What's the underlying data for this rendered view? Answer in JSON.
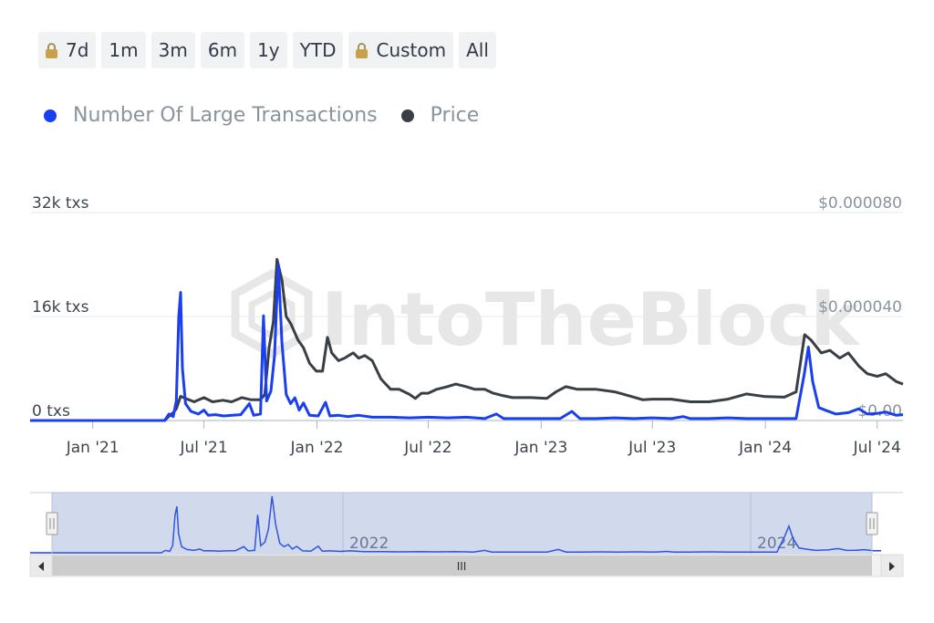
{
  "range_buttons": [
    {
      "label": "7d",
      "locked": true
    },
    {
      "label": "1m",
      "locked": false
    },
    {
      "label": "3m",
      "locked": false
    },
    {
      "label": "6m",
      "locked": false
    },
    {
      "label": "1y",
      "locked": false
    },
    {
      "label": "YTD",
      "locked": false
    },
    {
      "label": "Custom",
      "locked": true
    },
    {
      "label": "All",
      "locked": false
    }
  ],
  "legend": [
    {
      "label": "Number Of Large Transactions",
      "color": "#1a3ff0"
    },
    {
      "label": "Price",
      "color": "#3a3f46"
    }
  ],
  "watermark": "IntoTheBlock",
  "navigator": {
    "year_labels": [
      "2022",
      "2024"
    ],
    "scroll_grip": "III"
  },
  "chart_data": {
    "type": "line",
    "x_tick_labels": [
      "Jan '21",
      "Jul '21",
      "Jan '22",
      "Jul '22",
      "Jan '23",
      "Jul '23",
      "Jan '24",
      "Jul '24"
    ],
    "x_tick_dates": [
      "2021-01-01",
      "2021-07-01",
      "2022-01-01",
      "2022-07-01",
      "2023-01-01",
      "2023-07-01",
      "2024-01-01",
      "2024-07-01"
    ],
    "x_range": [
      "2020-09-21",
      "2024-08-12"
    ],
    "y_left_labels": [
      "0 txs",
      "16k txs",
      "32k txs"
    ],
    "y_left_range": [
      0,
      32000
    ],
    "y_right_labels": [
      "$0.00",
      "$0.000040",
      "$0.000080"
    ],
    "y_right_range": [
      0,
      8e-05
    ],
    "grid": true,
    "series": [
      {
        "name": "Number Of Large Transactions",
        "axis": "left",
        "color": "#1a3ff0",
        "points": [
          [
            "2020-09-21",
            0
          ],
          [
            "2021-04-28",
            0
          ],
          [
            "2021-05-05",
            1000
          ],
          [
            "2021-05-12",
            600
          ],
          [
            "2021-05-17",
            3000
          ],
          [
            "2021-05-21",
            16000
          ],
          [
            "2021-05-24",
            19700
          ],
          [
            "2021-05-27",
            8000
          ],
          [
            "2021-06-01",
            2600
          ],
          [
            "2021-06-10",
            1400
          ],
          [
            "2021-06-22",
            1000
          ],
          [
            "2021-07-01",
            1600
          ],
          [
            "2021-07-08",
            800
          ],
          [
            "2021-07-20",
            900
          ],
          [
            "2021-08-02",
            700
          ],
          [
            "2021-08-16",
            800
          ],
          [
            "2021-08-30",
            900
          ],
          [
            "2021-09-13",
            2600
          ],
          [
            "2021-09-20",
            800
          ],
          [
            "2021-10-01",
            1000
          ],
          [
            "2021-10-06",
            16100
          ],
          [
            "2021-10-11",
            3000
          ],
          [
            "2021-10-18",
            4500
          ],
          [
            "2021-10-24",
            10000
          ],
          [
            "2021-10-30",
            24000
          ],
          [
            "2021-11-05",
            12000
          ],
          [
            "2021-11-12",
            4000
          ],
          [
            "2021-11-19",
            2600
          ],
          [
            "2021-11-26",
            3500
          ],
          [
            "2021-12-03",
            1600
          ],
          [
            "2021-12-10",
            2700
          ],
          [
            "2021-12-20",
            800
          ],
          [
            "2022-01-03",
            700
          ],
          [
            "2022-01-15",
            2800
          ],
          [
            "2022-01-22",
            700
          ],
          [
            "2022-02-05",
            800
          ],
          [
            "2022-02-20",
            600
          ],
          [
            "2022-03-10",
            800
          ],
          [
            "2022-04-01",
            500
          ],
          [
            "2022-05-01",
            500
          ],
          [
            "2022-06-01",
            400
          ],
          [
            "2022-07-01",
            500
          ],
          [
            "2022-08-01",
            400
          ],
          [
            "2022-09-01",
            500
          ],
          [
            "2022-10-01",
            300
          ],
          [
            "2022-10-20",
            1000
          ],
          [
            "2022-11-01",
            300
          ],
          [
            "2022-12-01",
            300
          ],
          [
            "2023-01-01",
            300
          ],
          [
            "2023-02-01",
            300
          ],
          [
            "2023-02-20",
            1400
          ],
          [
            "2023-03-05",
            300
          ],
          [
            "2023-04-01",
            300
          ],
          [
            "2023-05-01",
            400
          ],
          [
            "2023-06-01",
            300
          ],
          [
            "2023-07-01",
            400
          ],
          [
            "2023-08-01",
            300
          ],
          [
            "2023-08-20",
            600
          ],
          [
            "2023-09-01",
            300
          ],
          [
            "2023-10-01",
            300
          ],
          [
            "2023-11-01",
            400
          ],
          [
            "2023-12-01",
            300
          ],
          [
            "2024-01-01",
            300
          ],
          [
            "2024-02-01",
            300
          ],
          [
            "2024-02-20",
            300
          ],
          [
            "2024-03-04",
            7000
          ],
          [
            "2024-03-11",
            11300
          ],
          [
            "2024-03-18",
            6000
          ],
          [
            "2024-03-28",
            2000
          ],
          [
            "2024-04-10",
            1500
          ],
          [
            "2024-04-25",
            1000
          ],
          [
            "2024-05-15",
            1200
          ],
          [
            "2024-06-01",
            1800
          ],
          [
            "2024-06-15",
            1000
          ],
          [
            "2024-07-01",
            1100
          ],
          [
            "2024-07-15",
            1300
          ],
          [
            "2024-08-01",
            800
          ],
          [
            "2024-08-12",
            900
          ]
        ]
      },
      {
        "name": "Price",
        "axis": "right",
        "color": "#3a3f46",
        "points": [
          [
            "2021-04-28",
            0.0
          ],
          [
            "2021-05-05",
            1.6e-06
          ],
          [
            "2021-05-12",
            3e-06
          ],
          [
            "2021-05-17",
            4.5e-06
          ],
          [
            "2021-05-24",
            9.3e-06
          ],
          [
            "2021-06-01",
            8.5e-06
          ],
          [
            "2021-06-15",
            7.2e-06
          ],
          [
            "2021-07-01",
            8.8e-06
          ],
          [
            "2021-07-15",
            7.2e-06
          ],
          [
            "2021-08-01",
            7.8e-06
          ],
          [
            "2021-08-15",
            7.2e-06
          ],
          [
            "2021-09-01",
            8.8e-06
          ],
          [
            "2021-09-15",
            8e-06
          ],
          [
            "2021-10-01",
            8e-06
          ],
          [
            "2021-10-08",
            1e-05
          ],
          [
            "2021-10-15",
            2.8e-05
          ],
          [
            "2021-10-22",
            3.8e-05
          ],
          [
            "2021-10-28",
            6.2e-05
          ],
          [
            "2021-11-05",
            5.4e-05
          ],
          [
            "2021-11-12",
            4e-05
          ],
          [
            "2021-11-20",
            3.7e-05
          ],
          [
            "2021-12-01",
            3.1e-05
          ],
          [
            "2021-12-10",
            2.8e-05
          ],
          [
            "2021-12-20",
            2.2e-05
          ],
          [
            "2021-12-31",
            1.9e-05
          ],
          [
            "2022-01-10",
            1.9e-05
          ],
          [
            "2022-01-18",
            3.2e-05
          ],
          [
            "2022-01-25",
            2.6e-05
          ],
          [
            "2022-02-05",
            2.3e-05
          ],
          [
            "2022-02-15",
            2.4e-05
          ],
          [
            "2022-03-01",
            2.6e-05
          ],
          [
            "2022-03-10",
            2.4e-05
          ],
          [
            "2022-03-20",
            2.5e-05
          ],
          [
            "2022-04-01",
            2.3e-05
          ],
          [
            "2022-04-15",
            1.6e-05
          ],
          [
            "2022-05-01",
            1.2e-05
          ],
          [
            "2022-05-15",
            1.2e-05
          ],
          [
            "2022-06-01",
            1e-05
          ],
          [
            "2022-06-10",
            8.5e-06
          ],
          [
            "2022-06-20",
            1.05e-05
          ],
          [
            "2022-07-01",
            1.05e-05
          ],
          [
            "2022-07-15",
            1.2e-05
          ],
          [
            "2022-08-01",
            1.3e-05
          ],
          [
            "2022-08-15",
            1.4e-05
          ],
          [
            "2022-09-01",
            1.3e-05
          ],
          [
            "2022-09-15",
            1.2e-05
          ],
          [
            "2022-10-01",
            1.2e-05
          ],
          [
            "2022-10-15",
            1.05e-05
          ],
          [
            "2022-11-01",
            9.5e-06
          ],
          [
            "2022-11-15",
            8.8e-06
          ],
          [
            "2022-12-15",
            8.8e-06
          ],
          [
            "2023-01-10",
            8.5e-06
          ],
          [
            "2023-01-25",
            1.1e-05
          ],
          [
            "2023-02-10",
            1.3e-05
          ],
          [
            "2023-03-01",
            1.2e-05
          ],
          [
            "2023-04-01",
            1.2e-05
          ],
          [
            "2023-05-01",
            1.1e-05
          ],
          [
            "2023-06-01",
            9e-06
          ],
          [
            "2023-06-15",
            8e-06
          ],
          [
            "2023-07-01",
            8.2e-06
          ],
          [
            "2023-08-01",
            8.2e-06
          ],
          [
            "2023-09-01",
            7.2e-06
          ],
          [
            "2023-10-01",
            7.2e-06
          ],
          [
            "2023-11-01",
            8.2e-06
          ],
          [
            "2023-12-01",
            1.02e-05
          ],
          [
            "2024-01-01",
            9.2e-06
          ],
          [
            "2024-02-01",
            9e-06
          ],
          [
            "2024-02-20",
            1.1e-05
          ],
          [
            "2024-03-05",
            3.3e-05
          ],
          [
            "2024-03-15",
            3.1e-05
          ],
          [
            "2024-04-01",
            2.6e-05
          ],
          [
            "2024-04-15",
            2.7e-05
          ],
          [
            "2024-05-01",
            2.4e-05
          ],
          [
            "2024-05-15",
            2.6e-05
          ],
          [
            "2024-06-01",
            2.1e-05
          ],
          [
            "2024-06-15",
            1.8e-05
          ],
          [
            "2024-07-01",
            1.7e-05
          ],
          [
            "2024-07-15",
            1.8e-05
          ],
          [
            "2024-08-01",
            1.5e-05
          ],
          [
            "2024-08-12",
            1.4e-05
          ]
        ]
      }
    ]
  }
}
